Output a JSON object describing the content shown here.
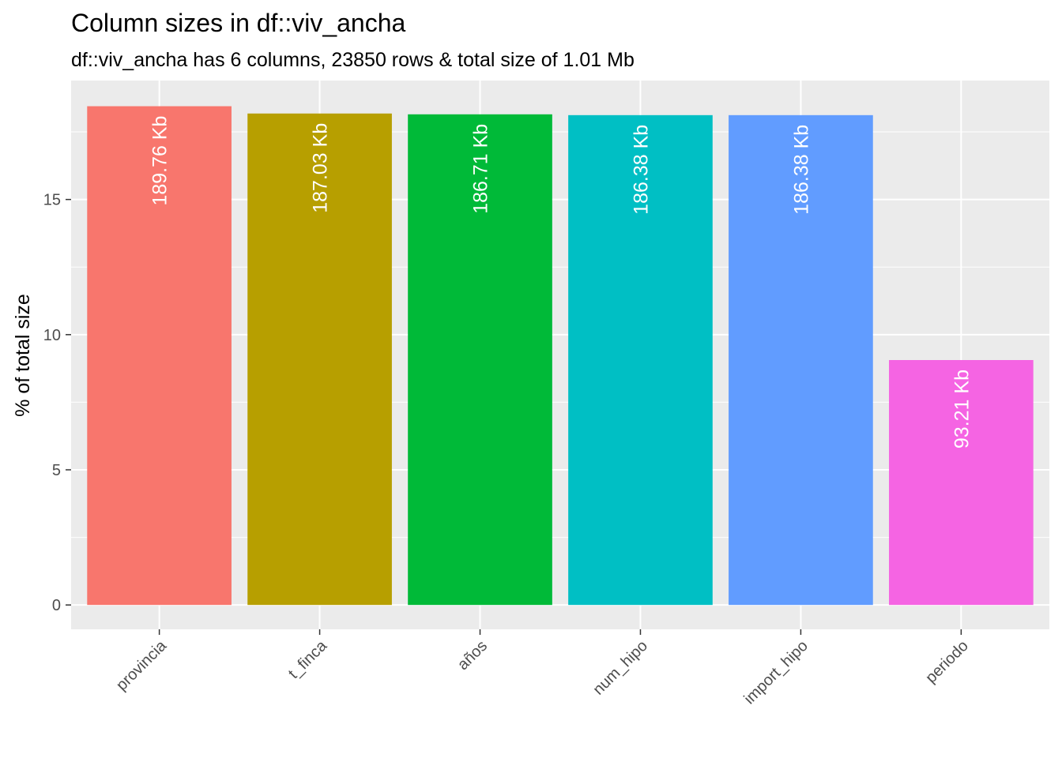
{
  "chart_data": {
    "type": "bar",
    "title": "Column sizes in df::viv_ancha",
    "subtitle": "df::viv_ancha has 6 columns, 23850 rows & total size of 1.01 Mb",
    "xlabel": "",
    "ylabel": "% of total size",
    "categories": [
      "provincia",
      "t_finca",
      "años",
      "num_hipo",
      "import_hipo",
      "periodo"
    ],
    "values": [
      18.45,
      18.18,
      18.15,
      18.12,
      18.12,
      9.06
    ],
    "bar_labels": [
      "189.76 Kb",
      "187.03 Kb",
      "186.71 Kb",
      "186.38 Kb",
      "186.38 Kb",
      "93.21 Kb"
    ],
    "colors": [
      "#F8766D",
      "#B79F00",
      "#00BA38",
      "#00BFC4",
      "#619CFF",
      "#F564E3"
    ],
    "ylim": [
      -0.9,
      19.4
    ],
    "y_ticks": [
      0,
      5,
      10,
      15
    ],
    "y_tick_labels": [
      "0",
      "5",
      "10",
      "15"
    ],
    "panel_background": "#EBEBEB",
    "grid": true,
    "legend": "none"
  }
}
